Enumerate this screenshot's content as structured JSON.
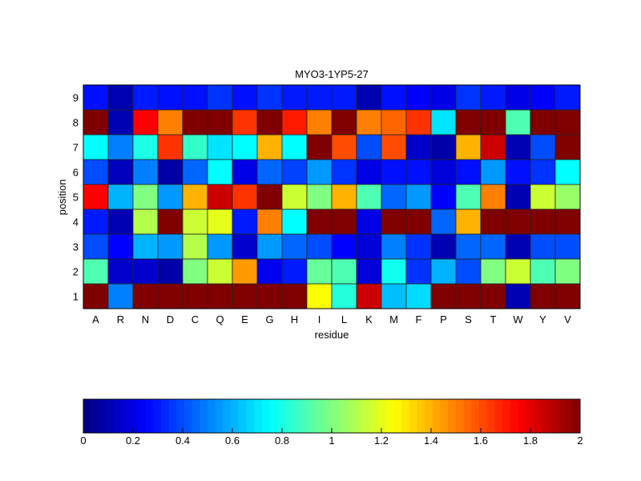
{
  "chart_data": {
    "type": "heatmap",
    "title": "MYO3-1YP5-27",
    "xlabel": "residue",
    "ylabel": "position",
    "colormap": "jet",
    "clim": [
      0,
      2
    ],
    "x_categories": [
      "A",
      "R",
      "N",
      "D",
      "C",
      "Q",
      "E",
      "G",
      "H",
      "I",
      "L",
      "K",
      "M",
      "F",
      "P",
      "S",
      "T",
      "W",
      "Y",
      "V"
    ],
    "y_categories": [
      "1",
      "2",
      "3",
      "4",
      "5",
      "6",
      "7",
      "8",
      "9"
    ],
    "colorbar_ticks": [
      "0",
      "0.2",
      "0.4",
      "0.6",
      "0.8",
      "1",
      "1.2",
      "1.4",
      "1.6",
      "1.8",
      "2"
    ],
    "colorbar_tick_values": [
      0,
      0.2,
      0.4,
      0.6,
      0.8,
      1,
      1.2,
      1.4,
      1.6,
      1.8,
      2
    ],
    "values_by_position": {
      "9": [
        0.28,
        0.1,
        0.3,
        0.28,
        0.28,
        0.35,
        0.28,
        0.35,
        0.3,
        0.3,
        0.3,
        0.1,
        0.28,
        0.25,
        0.2,
        0.35,
        0.3,
        0.2,
        0.25,
        0.3
      ],
      "8": [
        2.0,
        0.1,
        1.75,
        1.5,
        2.0,
        2.0,
        1.65,
        2.0,
        1.7,
        1.5,
        2.0,
        1.5,
        1.55,
        1.65,
        0.7,
        2.0,
        2.0,
        0.9,
        2.0,
        2.0
      ],
      "7": [
        0.75,
        0.5,
        0.8,
        1.65,
        0.85,
        0.7,
        0.75,
        1.4,
        0.75,
        2.0,
        1.6,
        0.4,
        1.6,
        0.15,
        0.08,
        1.4,
        1.85,
        0.1,
        0.4,
        2.0
      ],
      "6": [
        0.4,
        0.12,
        0.5,
        0.08,
        0.45,
        0.75,
        0.2,
        0.45,
        0.38,
        0.55,
        0.35,
        0.2,
        0.28,
        0.28,
        0.18,
        0.28,
        0.55,
        0.28,
        0.35,
        0.75
      ],
      "5": [
        1.75,
        0.6,
        1.0,
        0.55,
        1.4,
        1.85,
        1.65,
        2.0,
        1.15,
        1.0,
        1.4,
        0.9,
        0.45,
        0.55,
        0.25,
        0.9,
        1.5,
        0.1,
        1.15,
        1.05
      ],
      "4": [
        0.3,
        0.1,
        1.1,
        2.0,
        1.15,
        1.2,
        0.3,
        1.5,
        0.75,
        2.0,
        2.0,
        0.2,
        2.0,
        2.0,
        0.45,
        1.4,
        2.0,
        2.0,
        2.0,
        2.0
      ],
      "3": [
        0.4,
        0.25,
        0.6,
        0.55,
        1.1,
        0.55,
        0.15,
        0.55,
        0.45,
        0.4,
        0.25,
        0.18,
        0.5,
        0.35,
        0.1,
        0.45,
        0.45,
        0.1,
        0.4,
        0.4
      ],
      "2": [
        0.9,
        0.15,
        0.15,
        0.08,
        1.0,
        1.15,
        1.45,
        0.22,
        0.3,
        0.95,
        0.9,
        0.18,
        0.78,
        0.35,
        0.6,
        0.4,
        1.0,
        1.15,
        0.9,
        1.0
      ],
      "1": [
        2.0,
        0.5,
        2.0,
        2.0,
        2.0,
        2.0,
        2.0,
        2.0,
        2.0,
        1.25,
        0.82,
        1.85,
        0.62,
        0.68,
        2.0,
        2.0,
        2.0,
        0.1,
        2.0,
        2.0
      ]
    }
  }
}
